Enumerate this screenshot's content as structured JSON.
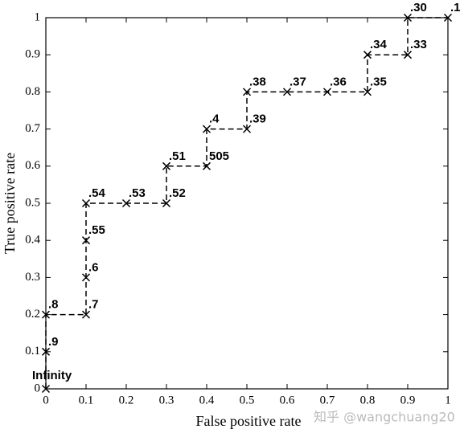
{
  "chart_data": {
    "type": "scatter",
    "xlabel": "False positive rate",
    "ylabel": "True positive rate",
    "x": [
      0,
      0,
      0,
      0.1,
      0.1,
      0.1,
      0.1,
      0.2,
      0.3,
      0.3,
      0.4,
      0.4,
      0.5,
      0.5,
      0.6,
      0.7,
      0.8,
      0.8,
      0.9,
      0.9,
      1
    ],
    "values": [
      0,
      0.1,
      0.2,
      0.2,
      0.3,
      0.4,
      0.5,
      0.5,
      0.5,
      0.6,
      0.6,
      0.7,
      0.7,
      0.8,
      0.8,
      0.8,
      0.8,
      0.9,
      0.9,
      1,
      1
    ],
    "point_labels": [
      "Infinity",
      ".9",
      ".8",
      ".7",
      ".6",
      ".55",
      ".54",
      ".53",
      ".52",
      ".51",
      "505",
      ".4",
      ".39",
      ".38",
      ".37",
      ".36",
      ".35",
      ".34",
      ".33",
      ".30",
      ".1"
    ],
    "color": "#000000",
    "xlim": [
      0,
      1
    ],
    "ylim": [
      0,
      1
    ],
    "xticks": [
      0,
      0.1,
      0.2,
      0.3,
      0.4,
      0.5,
      0.6,
      0.7,
      0.8,
      0.9,
      1
    ],
    "yticks": [
      0,
      0.1,
      0.2,
      0.3,
      0.4,
      0.5,
      0.6,
      0.7,
      0.8,
      0.9,
      1
    ],
    "watermark": "知乎 @wangchuang20"
  }
}
